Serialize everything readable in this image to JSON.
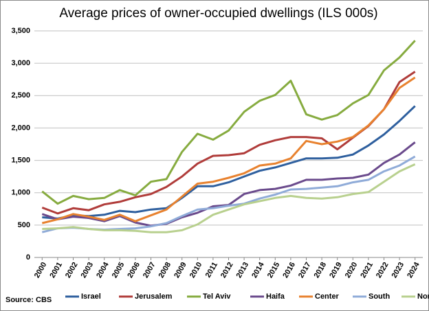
{
  "chart_data": {
    "type": "line",
    "title": "Average prices of owner-occupied dwellings (ILS 000s)",
    "source": "Source:  CBS",
    "categories": [
      "2000",
      "2001",
      "2002",
      "2003",
      "2004",
      "2005",
      "2006",
      "2007",
      "2008",
      "2009",
      "2010",
      "2011",
      "2012",
      "2013",
      "2014",
      "2015",
      "2016",
      "2017",
      "2018",
      "2019",
      "2020",
      "2021",
      "2022",
      "2023",
      "2024"
    ],
    "series": [
      {
        "name": "Israel",
        "color": "#2e5f9e",
        "values": [
          620,
          600,
          650,
          640,
          660,
          720,
          700,
          740,
          760,
          920,
          1100,
          1100,
          1160,
          1250,
          1340,
          1390,
          1460,
          1530,
          1530,
          1540,
          1590,
          1730,
          1900,
          2110,
          2340
        ]
      },
      {
        "name": "Jerusalem",
        "color": "#b03c3a",
        "values": [
          770,
          680,
          760,
          730,
          820,
          860,
          930,
          980,
          1090,
          1250,
          1450,
          1570,
          1580,
          1610,
          1740,
          1810,
          1860,
          1860,
          1840,
          1670,
          1850,
          2030,
          2290,
          2710,
          2870
        ]
      },
      {
        "name": "Tel Aviv",
        "color": "#86ab3f",
        "values": [
          1020,
          830,
          950,
          900,
          920,
          1040,
          960,
          1170,
          1210,
          1630,
          1910,
          1820,
          1960,
          2250,
          2420,
          2510,
          2730,
          2210,
          2130,
          2200,
          2380,
          2510,
          2890,
          3090,
          3350
        ]
      },
      {
        "name": "Haifa",
        "color": "#6a4a8c",
        "values": [
          670,
          590,
          630,
          610,
          560,
          640,
          540,
          490,
          520,
          620,
          690,
          790,
          810,
          980,
          1040,
          1060,
          1110,
          1200,
          1200,
          1220,
          1230,
          1280,
          1460,
          1590,
          1780
        ]
      },
      {
        "name": "Center",
        "color": "#e8822f",
        "values": [
          530,
          590,
          670,
          630,
          580,
          660,
          560,
          650,
          740,
          940,
          1140,
          1170,
          1230,
          1300,
          1420,
          1450,
          1530,
          1800,
          1750,
          1790,
          1860,
          2040,
          2290,
          2620,
          2780
        ]
      },
      {
        "name": "South",
        "color": "#8fabd8",
        "values": [
          390,
          450,
          460,
          440,
          430,
          440,
          450,
          480,
          530,
          640,
          740,
          760,
          800,
          830,
          910,
          970,
          1050,
          1060,
          1080,
          1100,
          1160,
          1200,
          1330,
          1420,
          1560
        ]
      },
      {
        "name": "North",
        "color": "#b8d08e",
        "values": [
          440,
          450,
          470,
          440,
          420,
          420,
          410,
          390,
          390,
          420,
          510,
          660,
          740,
          820,
          870,
          920,
          950,
          920,
          910,
          930,
          980,
          1010,
          1170,
          1330,
          1440
        ]
      }
    ],
    "ylim": [
      0,
      3500
    ],
    "yticks": [
      0,
      500,
      {
        "value": 1000,
        "label": "1,000"
      },
      {
        "value": 1500,
        "label": "1,500"
      },
      {
        "value": 2000,
        "label": "2,000"
      },
      {
        "value": 2500,
        "label": "2,500"
      },
      {
        "value": 3000,
        "label": "3,000"
      },
      {
        "value": 3500,
        "label": "3,500"
      }
    ],
    "grid": true,
    "legend": "bottom"
  }
}
